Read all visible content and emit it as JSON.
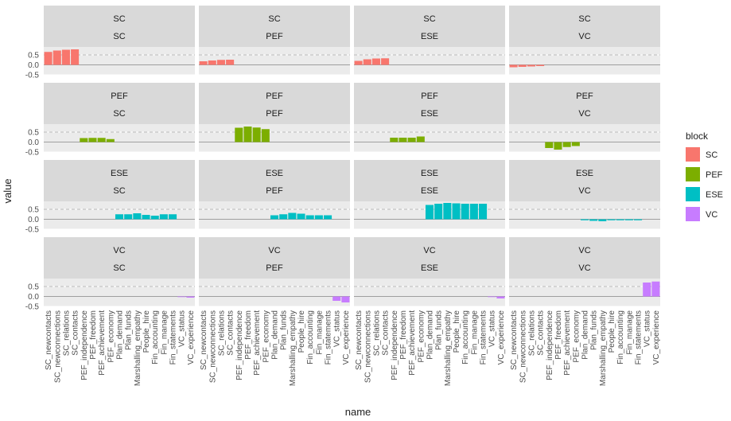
{
  "chart_data": {
    "type": "bar",
    "xlabel": "name",
    "ylabel": "value",
    "legend": {
      "title": "block",
      "position": "right",
      "entries": [
        {
          "label": "SC",
          "color": "#F8766D"
        },
        {
          "label": "PEF",
          "color": "#7CAE00"
        },
        {
          "label": "ESE",
          "color": "#00BFC4"
        },
        {
          "label": "VC",
          "color": "#C77CFF"
        }
      ]
    },
    "y_ticks": [
      {
        "value": 0.5,
        "label": "0.5"
      },
      {
        "value": 0.0,
        "label": "0.0"
      },
      {
        "value": -0.5,
        "label": "-0.5"
      }
    ],
    "ylim": [
      -0.5,
      0.9
    ],
    "reference_line": 0.5,
    "categories": [
      {
        "name": "SC_newcontacts",
        "block": "SC"
      },
      {
        "name": "SC_newconnections",
        "block": "SC"
      },
      {
        "name": "SC_relations",
        "block": "SC"
      },
      {
        "name": "SC_contacts",
        "block": "SC"
      },
      {
        "name": "PEF_independence",
        "block": "PEF"
      },
      {
        "name": "PEF_freedom",
        "block": "PEF"
      },
      {
        "name": "PEF_achievement",
        "block": "PEF"
      },
      {
        "name": "PEF_economy",
        "block": "PEF"
      },
      {
        "name": "Plan_demand",
        "block": "ESE"
      },
      {
        "name": "Plan_funds",
        "block": "ESE"
      },
      {
        "name": "Marshalling_empathy",
        "block": "ESE"
      },
      {
        "name": "People_hire",
        "block": "ESE"
      },
      {
        "name": "Fin_accounting",
        "block": "ESE"
      },
      {
        "name": "Fin_manage",
        "block": "ESE"
      },
      {
        "name": "Fin_statements",
        "block": "ESE"
      },
      {
        "name": "VC_status",
        "block": "VC"
      },
      {
        "name": "VC_experience",
        "block": "VC"
      }
    ],
    "panels": [
      {
        "row": "SC",
        "col": "SC",
        "values": [
          0.65,
          0.72,
          0.76,
          0.78
        ]
      },
      {
        "row": "SC",
        "col": "PEF",
        "values": [
          0.18,
          0.22,
          0.25,
          0.26
        ]
      },
      {
        "row": "SC",
        "col": "ESE",
        "values": [
          0.2,
          0.28,
          0.32,
          0.33
        ]
      },
      {
        "row": "SC",
        "col": "VC",
        "values": [
          -0.12,
          -0.1,
          -0.08,
          -0.06
        ]
      },
      {
        "row": "PEF",
        "col": "SC",
        "values": [
          0.2,
          0.21,
          0.21,
          0.15
        ]
      },
      {
        "row": "PEF",
        "col": "PEF",
        "values": [
          0.72,
          0.78,
          0.73,
          0.65
        ]
      },
      {
        "row": "PEF",
        "col": "ESE",
        "values": [
          0.22,
          0.22,
          0.22,
          0.28
        ]
      },
      {
        "row": "PEF",
        "col": "VC",
        "values": [
          -0.3,
          -0.38,
          -0.25,
          -0.2
        ]
      },
      {
        "row": "ESE",
        "col": "SC",
        "values": [
          0.25,
          0.25,
          0.3,
          0.22,
          0.18,
          0.25,
          0.25
        ]
      },
      {
        "row": "ESE",
        "col": "PEF",
        "values": [
          0.2,
          0.25,
          0.32,
          0.28,
          0.2,
          0.2,
          0.2
        ]
      },
      {
        "row": "ESE",
        "col": "ESE",
        "values": [
          0.72,
          0.78,
          0.82,
          0.8,
          0.78,
          0.78,
          0.78
        ]
      },
      {
        "row": "ESE",
        "col": "VC",
        "values": [
          -0.05,
          -0.08,
          -0.1,
          -0.05,
          -0.05,
          -0.05,
          -0.05
        ]
      },
      {
        "row": "VC",
        "col": "SC",
        "values": [
          -0.02,
          -0.06
        ]
      },
      {
        "row": "VC",
        "col": "PEF",
        "values": [
          -0.22,
          -0.3
        ]
      },
      {
        "row": "VC",
        "col": "ESE",
        "values": [
          -0.02,
          -0.1
        ]
      },
      {
        "row": "VC",
        "col": "VC",
        "values": [
          0.7,
          0.75
        ]
      }
    ]
  }
}
